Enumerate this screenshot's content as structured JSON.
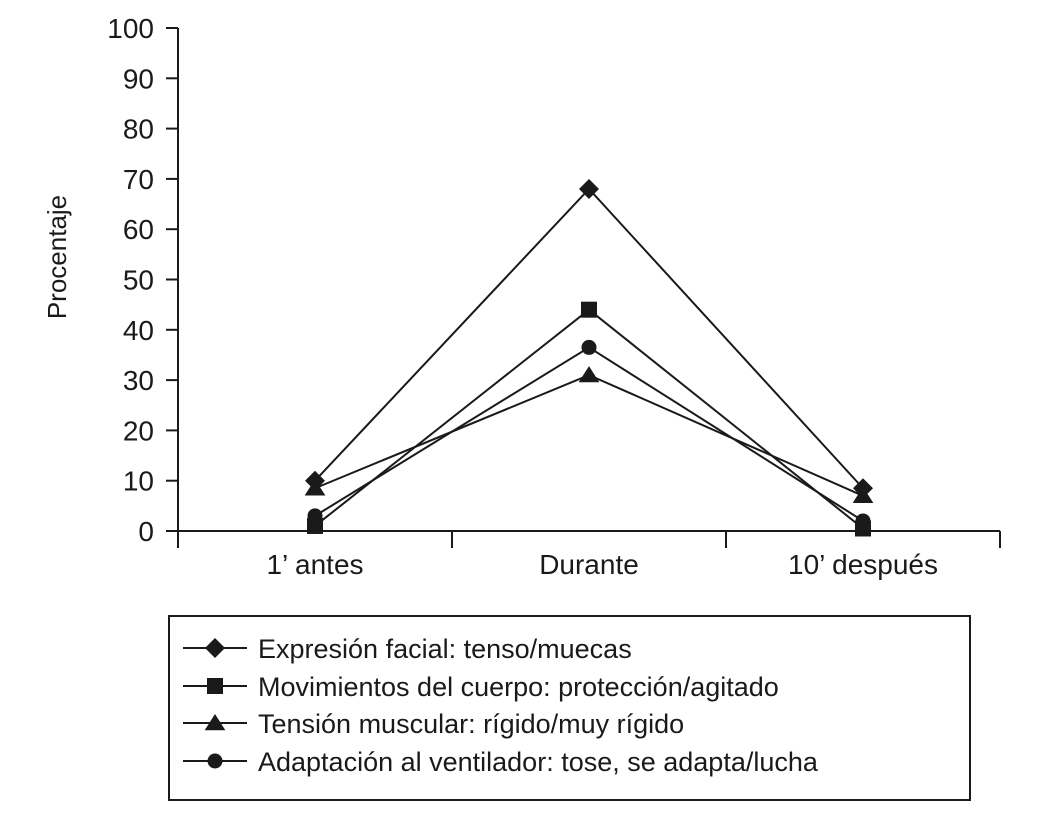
{
  "chart_data": {
    "type": "line",
    "title": "",
    "xlabel": "",
    "ylabel": "Procentaje",
    "ylim": [
      0,
      100
    ],
    "yticks": [
      0,
      10,
      20,
      30,
      40,
      50,
      60,
      70,
      80,
      90,
      100
    ],
    "categories": [
      "1’ antes",
      "Durante",
      "10’ después"
    ],
    "grid": false,
    "legend_position": "bottom",
    "series": [
      {
        "name": "Expresión facial: tenso/muecas",
        "marker": "diamond",
        "values": [
          10,
          68,
          8.5
        ]
      },
      {
        "name": "Movimientos del cuerpo: protección/agitado",
        "marker": "square",
        "values": [
          1,
          44,
          0.5
        ]
      },
      {
        "name": "Tensión muscular: rígido/muy rígido",
        "marker": "triangle",
        "values": [
          8.5,
          31,
          7
        ]
      },
      {
        "name": "Adaptación al ventilador: tose, se adapta/lucha",
        "marker": "circle",
        "values": [
          3,
          36.5,
          2
        ]
      }
    ],
    "colors": {
      "line": "#1a1a1a",
      "marker": "#1a1a1a"
    }
  }
}
